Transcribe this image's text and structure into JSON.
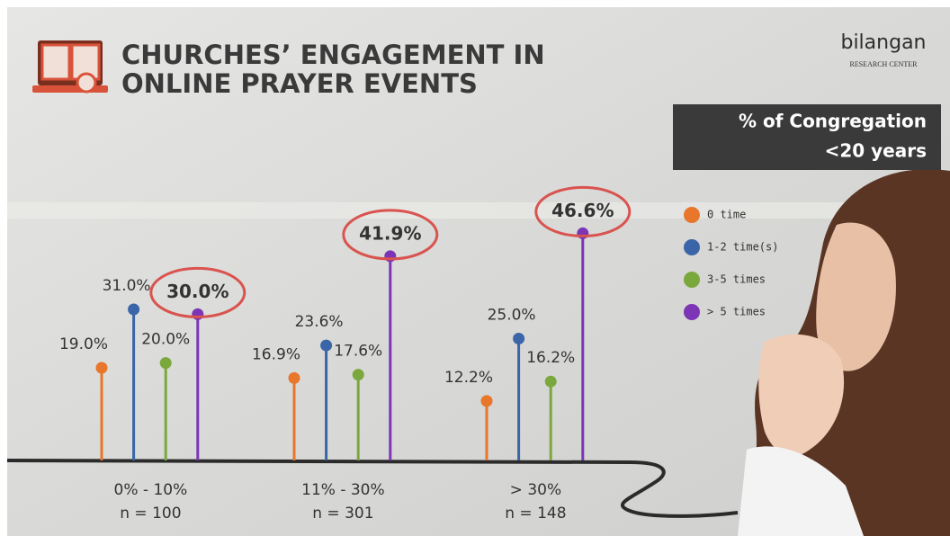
{
  "chart_data": {
    "type": "lollipop",
    "title": [
      "CHURCHES’ ENGAGEMENT IN",
      "ONLINE PRAYER EVENTS"
    ],
    "logo": {
      "name": "bilangan",
      "subtitle": "RESEARCH CENTER"
    },
    "subtitle": [
      "% of Congregation",
      "<20 years"
    ],
    "categories": [
      "0% - 10%",
      "11% - 30%",
      "> 30%"
    ],
    "sample_sizes": [
      "n = 100",
      "n = 301",
      "n = 148"
    ],
    "series": [
      {
        "name": "0 time",
        "color": "#e8762b",
        "values": [
          19.0,
          16.9,
          12.2
        ],
        "value_labels": [
          "19.0%",
          "16.9%",
          "12.2%"
        ]
      },
      {
        "name": "1-2 time(s)",
        "color": "#3a65a8",
        "values": [
          31.0,
          23.6,
          25.0
        ],
        "value_labels": [
          "31.0%",
          "23.6%",
          "25.0%"
        ]
      },
      {
        "name": "3-5 times",
        "color": "#7ba83c",
        "values": [
          20.0,
          17.6,
          16.2
        ],
        "value_labels": [
          "20.0%",
          "17.6%",
          "16.2%"
        ]
      },
      {
        "name": "> 5 times",
        "color": "#7b35b5",
        "values": [
          30.0,
          41.9,
          46.6
        ],
        "value_labels": [
          "30.0%",
          "41.9%",
          "46.6%"
        ]
      }
    ],
    "highlighted_series": 3
  }
}
